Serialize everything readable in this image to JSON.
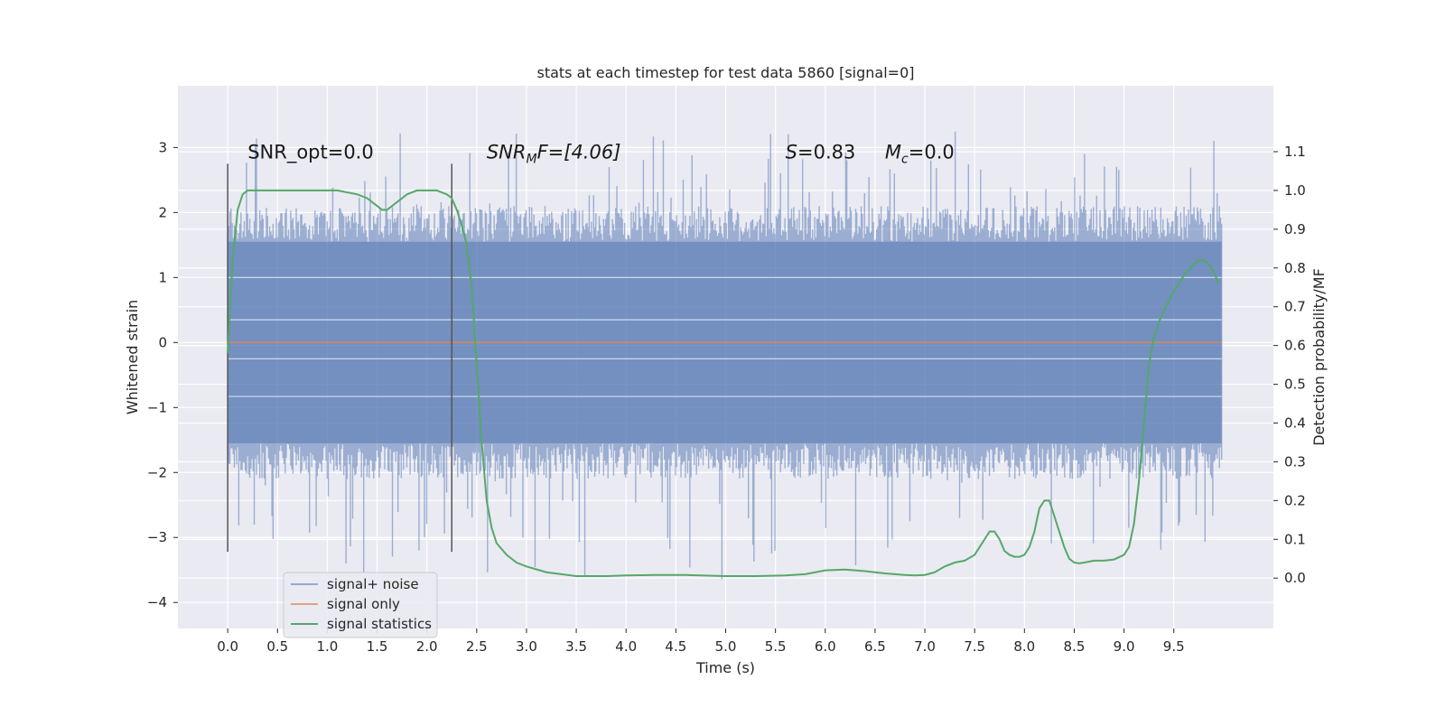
{
  "chart_data": {
    "type": "line",
    "title": "stats at each timestep for test data 5860 [signal=0]",
    "xlabel": "Time (s)",
    "ylabel_left": "Whitened strain",
    "ylabel_right": "Detection probability/MF",
    "xlim": [
      -0.5,
      10.5
    ],
    "ylim_left": [
      -4.4,
      3.95
    ],
    "ylim_right": [
      -0.13,
      1.27
    ],
    "x_ticks": [
      "0.0",
      "0.5",
      "1.0",
      "1.5",
      "2.0",
      "2.5",
      "3.0",
      "3.5",
      "4.0",
      "4.5",
      "5.0",
      "5.5",
      "6.0",
      "6.5",
      "7.0",
      "7.5",
      "8.0",
      "8.5",
      "9.0",
      "9.5"
    ],
    "y_ticks_left": [
      "3",
      "2",
      "1",
      "0",
      "−1",
      "−2",
      "−3",
      "−4"
    ],
    "y_ticks_right": [
      "1.1",
      "1.0",
      "0.9",
      "0.8",
      "0.7",
      "0.6",
      "0.5",
      "0.4",
      "0.3",
      "0.2",
      "0.1",
      "0.0"
    ],
    "grid": true,
    "legend_position": "lower-left",
    "colors": {
      "background": "#eaeaf2",
      "grid": "#ffffff",
      "noise": "#4c72b0",
      "signal": "#dd8452",
      "statistics": "#55a868",
      "vline": "#555555"
    },
    "annotations": {
      "snr_opt": "SNR_opt=0.0",
      "snr_mf_name": "SNR",
      "snr_mf_sub": "M",
      "snr_mf_rest": "F=[4.06]",
      "s_name": "S",
      "s_rest": "=0.83",
      "mc_name": "M",
      "mc_sub": "c",
      "mc_rest": "=0.0"
    },
    "vertical_markers_x": [
      0.0,
      2.25
    ],
    "series": [
      {
        "name": "signal+ noise",
        "axis": "left",
        "style": "noise-band",
        "x_range": [
          0.0,
          9.98
        ],
        "samples": 900,
        "core_amplitude": 1.55,
        "min": -4.05,
        "max": 3.55
      },
      {
        "name": "signal only",
        "axis": "left",
        "x": [
          0.0,
          9.98
        ],
        "values": [
          0.0,
          0.0
        ]
      },
      {
        "name": "signal statistics",
        "axis": "right",
        "x": [
          0.0,
          0.05,
          0.1,
          0.15,
          0.2,
          0.3,
          0.5,
          0.8,
          1.1,
          1.3,
          1.4,
          1.5,
          1.55,
          1.6,
          1.7,
          1.8,
          1.9,
          2.0,
          2.1,
          2.2,
          2.25,
          2.3,
          2.35,
          2.4,
          2.45,
          2.5,
          2.55,
          2.6,
          2.65,
          2.7,
          2.8,
          2.9,
          3.0,
          3.2,
          3.5,
          3.8,
          4.0,
          4.3,
          4.6,
          5.0,
          5.3,
          5.6,
          5.8,
          6.0,
          6.2,
          6.4,
          6.6,
          6.8,
          6.9,
          7.0,
          7.1,
          7.2,
          7.3,
          7.4,
          7.5,
          7.55,
          7.6,
          7.65,
          7.7,
          7.75,
          7.8,
          7.85,
          7.9,
          7.95,
          8.0,
          8.05,
          8.1,
          8.15,
          8.2,
          8.25,
          8.3,
          8.35,
          8.4,
          8.45,
          8.5,
          8.55,
          8.6,
          8.7,
          8.8,
          8.9,
          9.0,
          9.05,
          9.1,
          9.15,
          9.2,
          9.25,
          9.3,
          9.35,
          9.4,
          9.5,
          9.6,
          9.7,
          9.75,
          9.8,
          9.85,
          9.9,
          9.95
        ],
        "values": [
          0.58,
          0.82,
          0.95,
          0.99,
          1.0,
          1.0,
          1.0,
          1.0,
          1.0,
          0.99,
          0.98,
          0.96,
          0.95,
          0.95,
          0.97,
          0.99,
          1.0,
          1.0,
          1.0,
          0.99,
          0.98,
          0.95,
          0.91,
          0.86,
          0.75,
          0.55,
          0.35,
          0.2,
          0.13,
          0.09,
          0.06,
          0.04,
          0.03,
          0.015,
          0.005,
          0.005,
          0.007,
          0.008,
          0.008,
          0.005,
          0.005,
          0.007,
          0.01,
          0.02,
          0.022,
          0.018,
          0.012,
          0.008,
          0.007,
          0.008,
          0.015,
          0.03,
          0.04,
          0.045,
          0.06,
          0.08,
          0.1,
          0.12,
          0.12,
          0.1,
          0.07,
          0.06,
          0.055,
          0.055,
          0.06,
          0.08,
          0.12,
          0.18,
          0.2,
          0.2,
          0.16,
          0.12,
          0.08,
          0.05,
          0.04,
          0.038,
          0.04,
          0.045,
          0.045,
          0.048,
          0.06,
          0.08,
          0.14,
          0.25,
          0.4,
          0.55,
          0.62,
          0.66,
          0.69,
          0.74,
          0.78,
          0.81,
          0.82,
          0.82,
          0.81,
          0.79,
          0.76
        ]
      }
    ]
  }
}
